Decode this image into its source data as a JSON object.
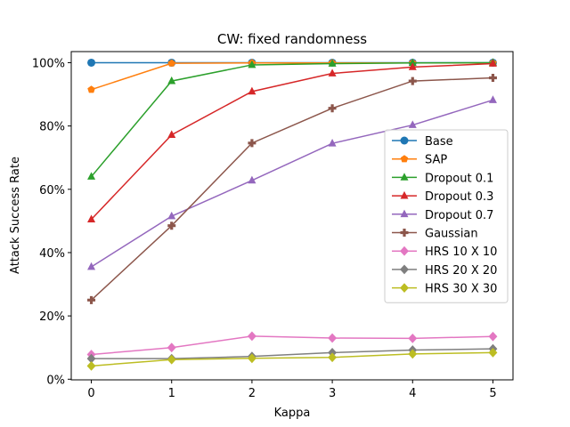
{
  "chart_data": {
    "type": "line",
    "title": "CW: fixed randomness",
    "xlabel": "Kappa",
    "ylabel": "Attack Success Rate",
    "x": [
      0,
      1,
      2,
      3,
      4,
      5
    ],
    "xlim": [
      -0.25,
      5.25
    ],
    "ylim": [
      -0.2,
      103.5
    ],
    "xticks": [
      "0",
      "1",
      "2",
      "3",
      "4",
      "5"
    ],
    "yticks": [
      {
        "value": 0,
        "label": "0%"
      },
      {
        "value": 20,
        "label": "20%"
      },
      {
        "value": 40,
        "label": "40%"
      },
      {
        "value": 60,
        "label": "60%"
      },
      {
        "value": 80,
        "label": "80%"
      },
      {
        "value": 100,
        "label": "100%"
      }
    ],
    "legend_position": "center-right",
    "series": [
      {
        "name": "Base",
        "color": "#1f77b4",
        "marker": "circle",
        "values": [
          100,
          100,
          100,
          100,
          100,
          100
        ]
      },
      {
        "name": "SAP",
        "color": "#ff7f0e",
        "marker": "pentagon",
        "values": [
          91.5,
          99.8,
          99.9,
          99.9,
          99.9,
          99.9
        ]
      },
      {
        "name": "Dropout 0.1",
        "color": "#2ca02c",
        "marker": "triangle",
        "values": [
          64.0,
          94.2,
          99.3,
          99.7,
          99.9,
          100
        ]
      },
      {
        "name": "Dropout 0.3",
        "color": "#d62728",
        "marker": "triangle",
        "values": [
          50.5,
          77.2,
          90.9,
          96.6,
          98.6,
          99.7
        ]
      },
      {
        "name": "Dropout 0.7",
        "color": "#9467bd",
        "marker": "triangle",
        "values": [
          35.5,
          51.5,
          62.8,
          74.5,
          80.3,
          88.2
        ]
      },
      {
        "name": "Gaussian",
        "color": "#8c564b",
        "marker": "plus",
        "values": [
          25.0,
          48.5,
          74.6,
          85.6,
          94.2,
          95.2
        ]
      },
      {
        "name": "HRS 10 X 10",
        "color": "#e377c2",
        "marker": "diamond",
        "values": [
          7.8,
          10.0,
          13.6,
          13.0,
          12.9,
          13.5
        ]
      },
      {
        "name": "HRS 20 X 20",
        "color": "#7f7f7f",
        "marker": "diamond",
        "values": [
          6.5,
          6.5,
          7.2,
          8.4,
          9.2,
          9.6
        ]
      },
      {
        "name": "HRS 30 X 30",
        "color": "#bcbd22",
        "marker": "diamond",
        "values": [
          4.2,
          6.2,
          6.6,
          6.9,
          8.0,
          8.4
        ]
      }
    ]
  }
}
